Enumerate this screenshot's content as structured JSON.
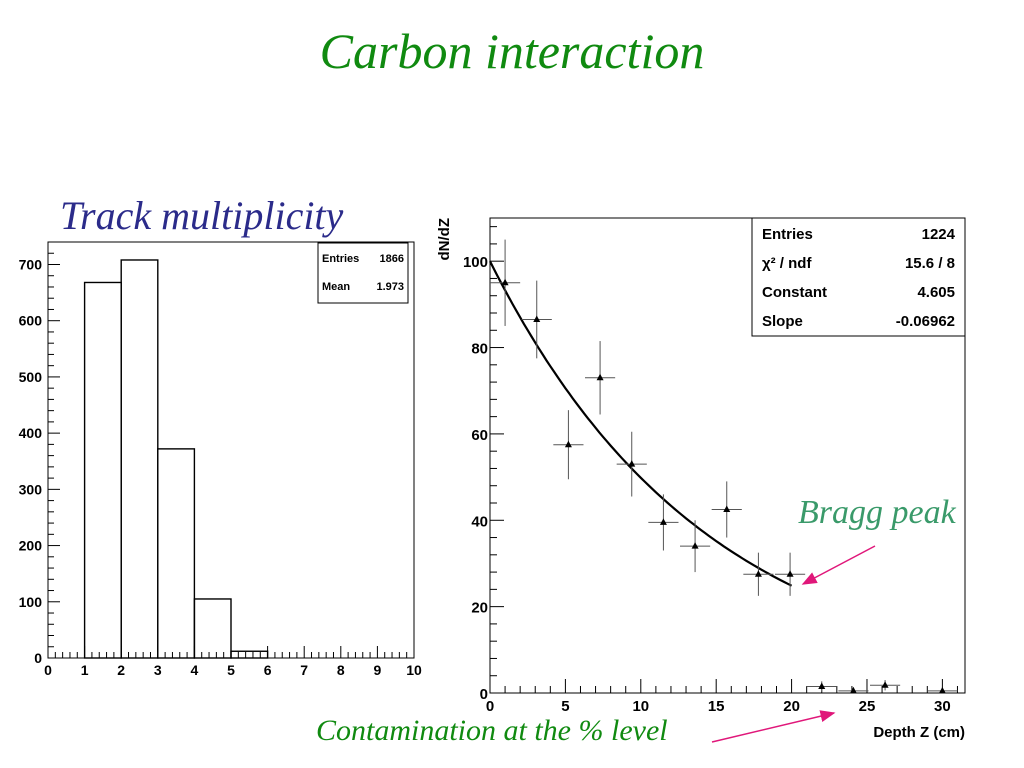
{
  "title": "Carbon interaction",
  "left_panel_title": "Track multiplicity",
  "annotations": {
    "bragg_peak": "Bragg peak",
    "contamination": "Contamination at the % level"
  },
  "colors": {
    "title": "#108a10",
    "subtitle": "#2b2b8a",
    "bragg_label": "#3a9a6a",
    "arrow": "#e0177a"
  },
  "chart_data": [
    {
      "type": "bar",
      "title": "Track multiplicity",
      "style": "histogram-step",
      "xlim": [
        0,
        10
      ],
      "ylim": [
        0,
        740
      ],
      "x_ticks": [
        "0",
        "1",
        "2",
        "3",
        "4",
        "5",
        "6",
        "7",
        "8",
        "9",
        "10"
      ],
      "y_ticks": [
        "0",
        "100",
        "200",
        "300",
        "400",
        "500",
        "600",
        "700"
      ],
      "bins": [
        {
          "x_low": 1,
          "x_high": 2,
          "value": 668
        },
        {
          "x_low": 2,
          "x_high": 3,
          "value": 708
        },
        {
          "x_low": 3,
          "x_high": 4,
          "value": 372
        },
        {
          "x_low": 4,
          "x_high": 5,
          "value": 105
        },
        {
          "x_low": 5,
          "x_high": 6,
          "value": 12
        }
      ],
      "stats_box": [
        {
          "label": "Entries",
          "value": "1866"
        },
        {
          "label": "Mean",
          "value": "1.973"
        }
      ],
      "grid": false,
      "legend_position": "top-right"
    },
    {
      "type": "scatter",
      "xlabel": "Depth Z (cm)",
      "ylabel": "dN/dZ",
      "xlim": [
        0,
        31.5
      ],
      "ylim": [
        0,
        110
      ],
      "x_ticks": [
        "0",
        "5",
        "10",
        "15",
        "20",
        "25",
        "30"
      ],
      "y_ticks": [
        "0",
        "20",
        "40",
        "60",
        "80",
        "100"
      ],
      "points": [
        {
          "x": 1.0,
          "y": 95,
          "xerr": 1.0,
          "yerr": 10
        },
        {
          "x": 3.1,
          "y": 86.5,
          "xerr": 1.0,
          "yerr": 9
        },
        {
          "x": 5.2,
          "y": 57.5,
          "xerr": 1.0,
          "yerr": 8
        },
        {
          "x": 7.3,
          "y": 73,
          "xerr": 1.0,
          "yerr": 8.5
        },
        {
          "x": 9.4,
          "y": 53,
          "xerr": 1.0,
          "yerr": 7.5
        },
        {
          "x": 11.5,
          "y": 39.5,
          "xerr": 1.0,
          "yerr": 6.5
        },
        {
          "x": 13.6,
          "y": 34,
          "xerr": 1.0,
          "yerr": 6
        },
        {
          "x": 15.7,
          "y": 42.5,
          "xerr": 1.0,
          "yerr": 6.5
        },
        {
          "x": 17.8,
          "y": 27.5,
          "xerr": 1.0,
          "yerr": 5
        },
        {
          "x": 19.9,
          "y": 27.5,
          "xerr": 1.0,
          "yerr": 5
        },
        {
          "x": 22.0,
          "y": 1.5,
          "xerr": 1.0,
          "yerr": 1.2
        },
        {
          "x": 24.1,
          "y": 0.5,
          "xerr": 1.0,
          "yerr": 0.8
        },
        {
          "x": 26.2,
          "y": 1.8,
          "xerr": 1.0,
          "yerr": 1.2
        },
        {
          "x": 30.0,
          "y": 0.5,
          "xerr": 1.0,
          "yerr": 0.8
        }
      ],
      "fit": {
        "function": "exponential",
        "constant": 4.605,
        "slope": -0.06962,
        "x_range": [
          0,
          20
        ]
      },
      "stats_box": [
        {
          "label": "Entries",
          "value": "1224"
        },
        {
          "label": "χ² / ndf",
          "value": "15.6 / 8"
        },
        {
          "label": "Constant",
          "value": "4.605"
        },
        {
          "label": "Slope",
          "value": "-0.06962"
        }
      ],
      "grid": false,
      "legend_position": "top-right"
    }
  ]
}
